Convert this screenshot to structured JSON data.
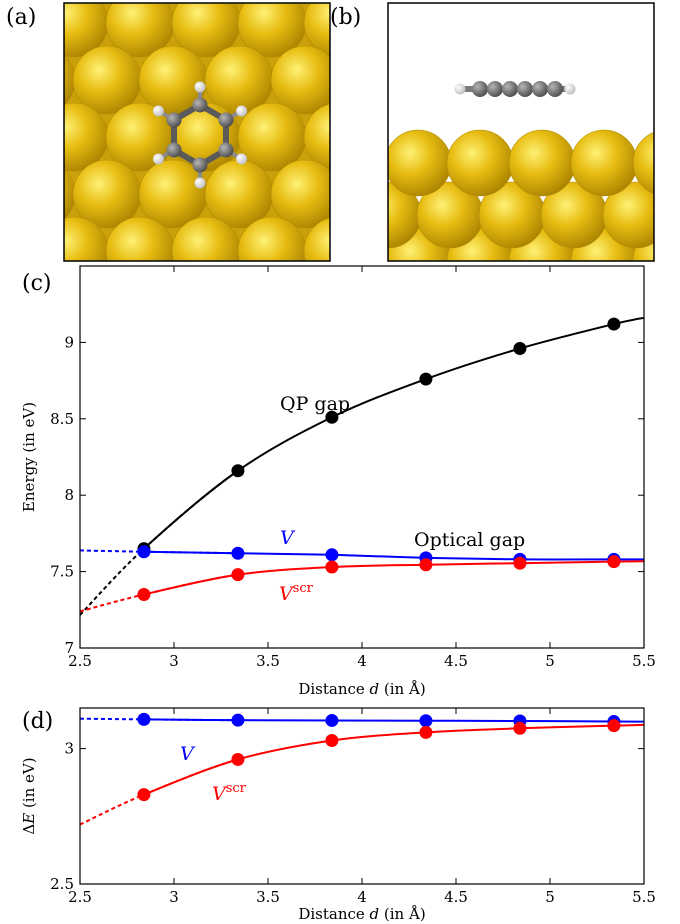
{
  "panels": {
    "a": "(a)",
    "b": "(b)",
    "c": "(c)",
    "d": "(d)"
  },
  "colors": {
    "gold": "#e1b511",
    "gold_dark": "#b78f05",
    "carbon": "#6e6e6e",
    "hydrogen": "#f2f2f2",
    "qp": "#000000",
    "v": "#0000ff",
    "vscr": "#ff0000"
  },
  "chart_data": [
    {
      "id": "c",
      "type": "line",
      "xlabel": "Distance d (in Å)",
      "ylabel": "Energy (in eV)",
      "xlim": [
        2.5,
        5.5
      ],
      "ylim": [
        7,
        9.5
      ],
      "xticks": [
        "2.5",
        "3",
        "3.5",
        "4",
        "4.5",
        "5",
        "5.5"
      ],
      "yticks": [
        "7",
        "7.5",
        "8",
        "8.5",
        "9"
      ],
      "grid": false,
      "series": [
        {
          "name": "QP gap",
          "color": "#000000",
          "x": [
            2.84,
            3.34,
            3.84,
            4.34,
            4.84,
            5.34
          ],
          "values": [
            7.65,
            8.16,
            8.51,
            8.76,
            8.96,
            9.12
          ]
        },
        {
          "name": "V",
          "color": "#0000ff",
          "x": [
            2.84,
            3.34,
            3.84,
            4.34,
            4.84,
            5.34
          ],
          "values": [
            7.63,
            7.62,
            7.61,
            7.59,
            7.58,
            7.58
          ]
        },
        {
          "name": "V^scr",
          "color": "#ff0000",
          "x": [
            2.84,
            3.34,
            3.84,
            4.34,
            4.84,
            5.34
          ],
          "values": [
            7.35,
            7.48,
            7.53,
            7.545,
            7.555,
            7.565
          ]
        }
      ],
      "annotations": {
        "qp": "QP gap",
        "optical": "Optical gap",
        "v": "V",
        "vscr_base": "V",
        "vscr_sup": "scr"
      }
    },
    {
      "id": "d",
      "type": "line",
      "xlabel": "Distance d (in Å)",
      "ylabel": "ΔE (in eV)",
      "xlim": [
        2.5,
        5.5
      ],
      "ylim": [
        2.5,
        3.15
      ],
      "xticks": [
        "2.5",
        "3",
        "3.5",
        "4",
        "4.5",
        "5",
        "5.5"
      ],
      "yticks": [
        "2.5",
        "3"
      ],
      "grid": false,
      "series": [
        {
          "name": "V",
          "color": "#0000ff",
          "x": [
            2.84,
            3.34,
            3.84,
            4.34,
            4.84,
            5.34
          ],
          "values": [
            3.108,
            3.105,
            3.104,
            3.103,
            3.102,
            3.1
          ]
        },
        {
          "name": "V^scr",
          "color": "#ff0000",
          "x": [
            2.84,
            3.34,
            3.84,
            4.34,
            4.84,
            5.34
          ],
          "values": [
            2.83,
            2.96,
            3.03,
            3.06,
            3.075,
            3.085
          ]
        }
      ],
      "annotations": {
        "v": "V",
        "vscr_base": "V",
        "vscr_sup": "scr"
      }
    }
  ]
}
